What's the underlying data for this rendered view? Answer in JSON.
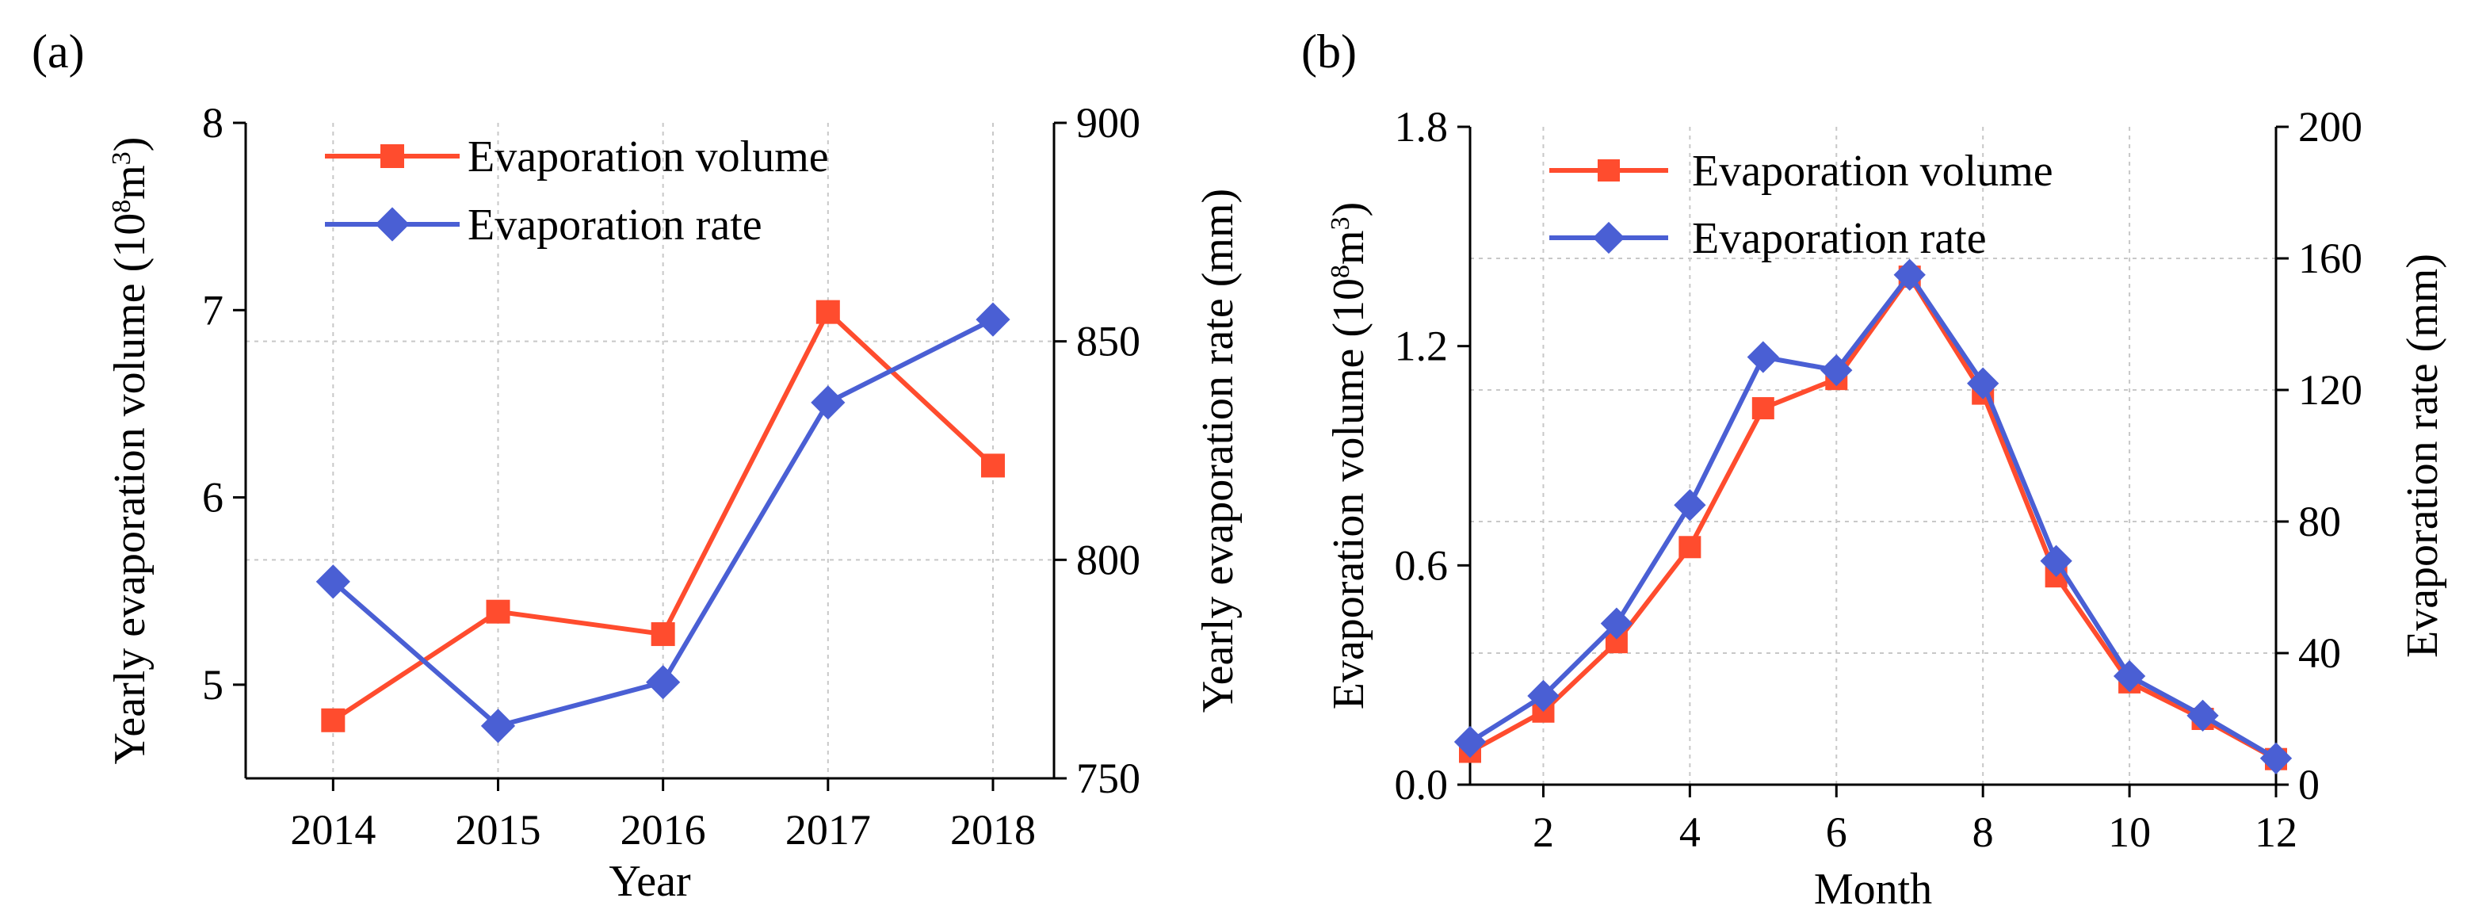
{
  "figure": {
    "colors": {
      "volume": "#ff4c2e",
      "rate": "#4a5fd4"
    },
    "panels": [
      {
        "panel_label": "(a)",
        "xlabel": "Year",
        "ylabel_left": {
          "pre": "Yearly evaporation volume (10",
          "sup1": "8",
          "mid": "m",
          "sup2": "3",
          "post": ")"
        },
        "ylabel_right": "Yearly evaporation rate (mm)",
        "legend": [
          "Evaporation volume",
          "Evaporation rate"
        ]
      },
      {
        "panel_label": "(b)",
        "xlabel": "Month",
        "ylabel_left": {
          "pre": "Evaporation volume (10",
          "sup1": "8",
          "mid": "m",
          "sup2": "3",
          "post": ")"
        },
        "ylabel_right": "Evaporation rate (mm)",
        "legend": [
          "Evaporation volume",
          "Evaporation rate"
        ]
      }
    ]
  },
  "chart_data": [
    {
      "type": "line",
      "panel": "(a)",
      "xlabel": "Year",
      "ylabel": "Yearly evaporation volume (10^8 m^3)",
      "ylabel_right": "Yearly evaporation rate (mm)",
      "x": [
        2014,
        2015,
        2016,
        2017,
        2018
      ],
      "xlim": [
        2013.47,
        2018.37
      ],
      "xticks": [
        2014,
        2015,
        2016,
        2017,
        2018
      ],
      "ylim": [
        4.5,
        8
      ],
      "yticks": [
        5,
        6,
        7,
        8
      ],
      "ylim_right": [
        750,
        900
      ],
      "yticks_right": [
        750,
        800,
        850,
        900
      ],
      "grid": true,
      "legend_position": "top",
      "series": [
        {
          "name": "Evaporation volume",
          "axis": "left",
          "marker": "square",
          "values": [
            4.81,
            5.39,
            5.27,
            6.99,
            6.17
          ]
        },
        {
          "name": "Evaporation rate",
          "axis": "right",
          "marker": "diamond",
          "values": [
            795,
            762,
            772,
            836,
            855
          ]
        }
      ]
    },
    {
      "type": "line",
      "panel": "(b)",
      "xlabel": "Month",
      "ylabel": "Evaporation volume (10^8 m^3)",
      "ylabel_right": "Evaporation rate (mm)",
      "x": [
        1,
        2,
        3,
        4,
        5,
        6,
        7,
        8,
        9,
        10,
        11,
        12
      ],
      "xlim": [
        1,
        12
      ],
      "xticks": [
        2,
        4,
        6,
        8,
        10,
        12
      ],
      "ylim": [
        0,
        1.8
      ],
      "yticks": [
        0.0,
        0.6,
        1.2,
        1.8
      ],
      "ylim_right": [
        0,
        200
      ],
      "yticks_right": [
        0,
        40,
        80,
        120,
        160,
        200
      ],
      "grid": true,
      "legend_position": "top-left",
      "series": [
        {
          "name": "Evaporation volume",
          "axis": "left",
          "marker": "square",
          "values": [
            0.09,
            0.2,
            0.39,
            0.65,
            1.03,
            1.11,
            1.39,
            1.07,
            0.57,
            0.28,
            0.18,
            0.07
          ]
        },
        {
          "name": "Evaporation rate",
          "axis": "right",
          "marker": "diamond",
          "values": [
            13,
            27,
            49,
            85,
            130,
            126,
            155,
            122,
            68,
            33,
            21,
            8
          ]
        }
      ]
    }
  ]
}
